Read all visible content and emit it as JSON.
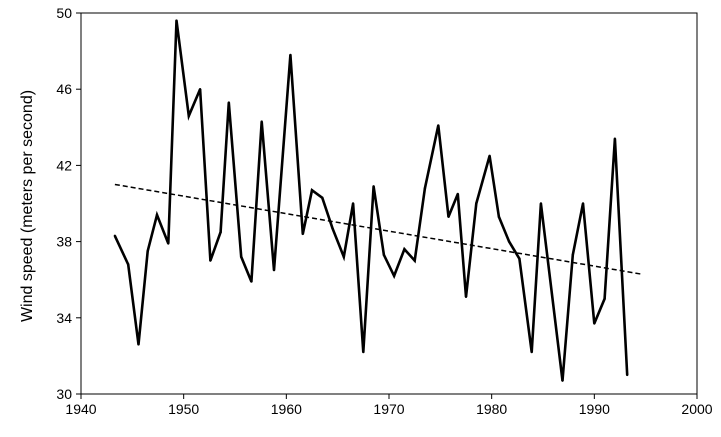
{
  "chart_data": {
    "type": "line",
    "title": "",
    "xlabel": "",
    "ylabel": "Wind speed (meters per second)",
    "xlim": [
      1940,
      2000
    ],
    "ylim": [
      30,
      50
    ],
    "x_ticks": [
      1940,
      1950,
      1960,
      1970,
      1980,
      1990,
      2000
    ],
    "y_ticks": [
      30,
      34,
      38,
      42,
      46,
      50
    ],
    "grid": false,
    "legend": "none",
    "colors": {
      "series": "#000000",
      "trend": "#000000"
    },
    "series": [
      {
        "x": [
          1943.3,
          1944.6,
          1945.6,
          1946.5,
          1947.4,
          1948.5,
          1949.3,
          1950.5,
          1951.6,
          1952.6,
          1953.6,
          1954.4,
          1955.6,
          1956.6,
          1957.6,
          1958.8,
          1960.4,
          1961.6,
          1962.5,
          1963.5,
          1964.5,
          1965.6,
          1966.5,
          1967.5,
          1968.5,
          1969.5,
          1970.5,
          1971.5,
          1972.5,
          1973.5,
          1974.8,
          1975.8,
          1976.7,
          1977.5,
          1978.5,
          1979.8,
          1980.7,
          1981.7,
          1982.7,
          1983.9,
          1984.8,
          1986.9,
          1987.9,
          1988.9,
          1990.0,
          1991.0,
          1992.0,
          1993.2
        ],
        "y": [
          38.3,
          36.8,
          32.6,
          37.5,
          39.4,
          37.9,
          49.6,
          44.6,
          46.0,
          37.0,
          38.5,
          45.3,
          37.2,
          35.9,
          44.3,
          36.5,
          47.8,
          38.4,
          40.7,
          40.3,
          38.7,
          37.2,
          40.0,
          32.2,
          40.9,
          37.3,
          36.2,
          37.6,
          37.0,
          40.8,
          44.1,
          39.3,
          40.5,
          35.1,
          40.0,
          42.5,
          39.3,
          38.0,
          37.1,
          32.2,
          40.0,
          30.7,
          37.3,
          40.0,
          33.7,
          35.0,
          43.4,
          31.0
        ]
      }
    ],
    "trendline": {
      "style": "dashed",
      "x": [
        1943.3,
        1994.5
      ],
      "y": [
        41.0,
        36.3
      ]
    }
  }
}
